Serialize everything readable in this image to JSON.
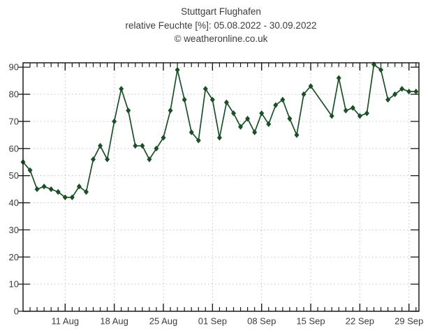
{
  "chart_data": {
    "type": "line",
    "title": "Stuttgart Flughafen",
    "subtitle": "relative Feuchte [%]: 05.08.2022 - 30.09.2022",
    "watermark": "© weatheronline.co.uk",
    "ylim": [
      0,
      91.6
    ],
    "yticks": [
      0,
      10,
      20,
      30,
      40,
      50,
      60,
      70,
      80,
      90
    ],
    "grid": "dashed",
    "legend": "none",
    "x_axis": {
      "minor_tick_unit": "day",
      "first_day": 0,
      "last_day": 56,
      "tick_day_indices": [
        6,
        13,
        20,
        27,
        34,
        41,
        48,
        55
      ],
      "tick_labels": [
        "11 Aug",
        "18 Aug",
        "25 Aug",
        "01 Sep",
        "08 Sep",
        "15 Sep",
        "22 Sep",
        "29 Sep"
      ]
    },
    "series": [
      {
        "name": "relative Feuchte [%]",
        "color": "#1b4f28",
        "marker": "diamond",
        "points": [
          [
            0,
            55
          ],
          [
            1,
            52
          ],
          [
            2,
            45
          ],
          [
            3,
            46
          ],
          [
            4,
            45
          ],
          [
            5,
            44
          ],
          [
            6,
            42
          ],
          [
            7,
            42
          ],
          [
            8,
            46
          ],
          [
            9,
            44
          ],
          [
            10,
            56
          ],
          [
            11,
            61
          ],
          [
            12,
            56
          ],
          [
            13,
            70
          ],
          [
            14,
            82
          ],
          [
            15,
            74
          ],
          [
            16,
            61
          ],
          [
            17,
            61
          ],
          [
            18,
            56
          ],
          [
            19,
            60
          ],
          [
            20,
            64
          ],
          [
            21,
            74
          ],
          [
            22,
            89
          ],
          [
            23,
            78
          ],
          [
            24,
            66
          ],
          [
            25,
            63
          ],
          [
            26,
            82
          ],
          [
            27,
            78
          ],
          [
            28,
            64
          ],
          [
            29,
            77
          ],
          [
            30,
            73
          ],
          [
            31,
            68
          ],
          [
            32,
            71
          ],
          [
            33,
            66
          ],
          [
            34,
            73
          ],
          [
            35,
            69
          ],
          [
            36,
            76
          ],
          [
            37,
            78
          ],
          [
            38,
            71
          ],
          [
            39,
            65
          ],
          [
            40,
            80
          ],
          [
            41,
            83
          ],
          [
            44,
            72
          ],
          [
            45,
            86
          ],
          [
            46,
            74
          ],
          [
            47,
            75
          ],
          [
            48,
            72
          ],
          [
            49,
            73
          ],
          [
            50,
            91
          ],
          [
            51,
            89
          ],
          [
            52,
            78
          ],
          [
            53,
            80
          ],
          [
            54,
            82
          ],
          [
            55,
            81
          ],
          [
            56,
            81
          ]
        ]
      }
    ],
    "colors": {
      "background": "#ffffff",
      "frame": "#1a1a1a",
      "grid": "#c4c4c4",
      "text": "#3c3c3c"
    }
  }
}
